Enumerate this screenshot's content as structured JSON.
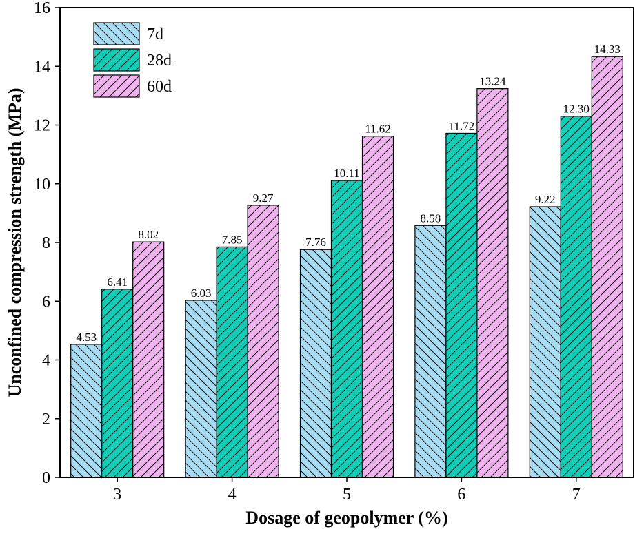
{
  "chart_data": {
    "type": "bar",
    "categories": [
      "3",
      "4",
      "5",
      "6",
      "7"
    ],
    "series": [
      {
        "name": "7d",
        "values": [
          4.53,
          6.03,
          7.76,
          8.58,
          9.22
        ],
        "labels": [
          "4.53",
          "6.03",
          "7.76",
          "8.58",
          "9.22"
        ],
        "color": "#a8dcf3",
        "hatch": "backslash"
      },
      {
        "name": "28d",
        "values": [
          6.41,
          7.85,
          10.11,
          11.72,
          12.3
        ],
        "labels": [
          "6.41",
          "7.85",
          "10.11",
          "11.72",
          "12.30"
        ],
        "color": "#14cdb7",
        "hatch": "slash"
      },
      {
        "name": "60d",
        "values": [
          8.02,
          9.27,
          11.62,
          13.24,
          14.33
        ],
        "labels": [
          "8.02",
          "9.27",
          "11.62",
          "13.24",
          "14.33"
        ],
        "color": "#efb3ee",
        "hatch": "slash"
      }
    ],
    "title": "",
    "xlabel": "Dosage of geopolymer (%)",
    "ylabel": "Unconfined compression strength (MPa)",
    "ylim": [
      0,
      16
    ],
    "yticks": [
      0,
      2,
      4,
      6,
      8,
      10,
      12,
      14,
      16
    ],
    "grid": false,
    "legend_position": "top-left"
  }
}
